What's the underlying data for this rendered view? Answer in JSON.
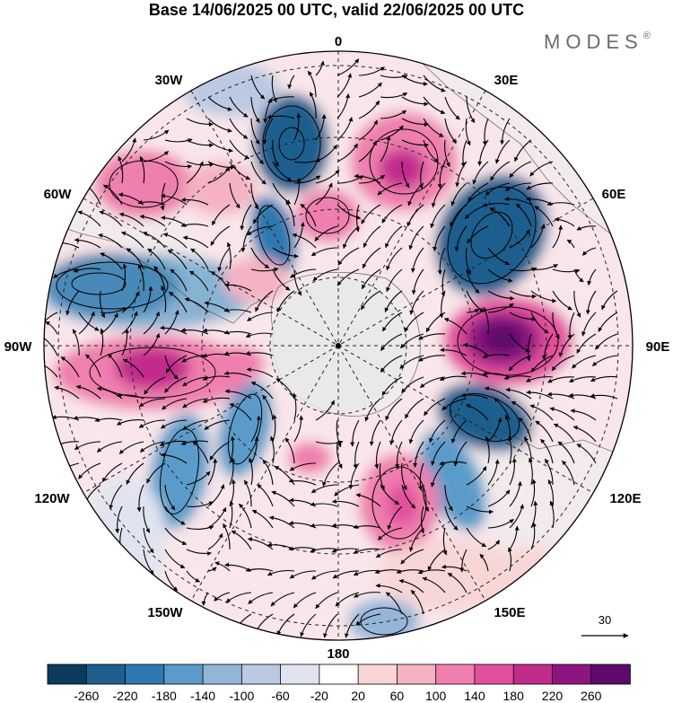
{
  "title": "Base 14/06/2025 00 UTC, valid 22/06/2025 00 UTC",
  "brand": {
    "name": "MODES",
    "mark": "®"
  },
  "map": {
    "projection": "south polar stereographic",
    "center_lon_label_top": "0",
    "longitude_labels": [
      "0",
      "30E",
      "60E",
      "90E",
      "120E",
      "150E",
      "180",
      "150W",
      "120W",
      "90W",
      "60W",
      "30W"
    ],
    "grid": "dashed",
    "land_color": "#e6e6e6"
  },
  "vector_reference": {
    "label": "30"
  },
  "colorbar": {
    "tick_labels": [
      "-260",
      "-220",
      "-180",
      "-140",
      "-100",
      "-60",
      "-20",
      "20",
      "60",
      "100",
      "140",
      "180",
      "220",
      "260"
    ],
    "colors": [
      "#0b3a5c",
      "#1f5f8e",
      "#2f78b0",
      "#5a9bc9",
      "#93b6d8",
      "#bcc9e2",
      "#e1e4f0",
      "#ffffff",
      "#f8d6d6",
      "#f4b2c2",
      "#ef7fae",
      "#e2509d",
      "#c22a8c",
      "#8e1580",
      "#5c0a6b"
    ]
  }
}
